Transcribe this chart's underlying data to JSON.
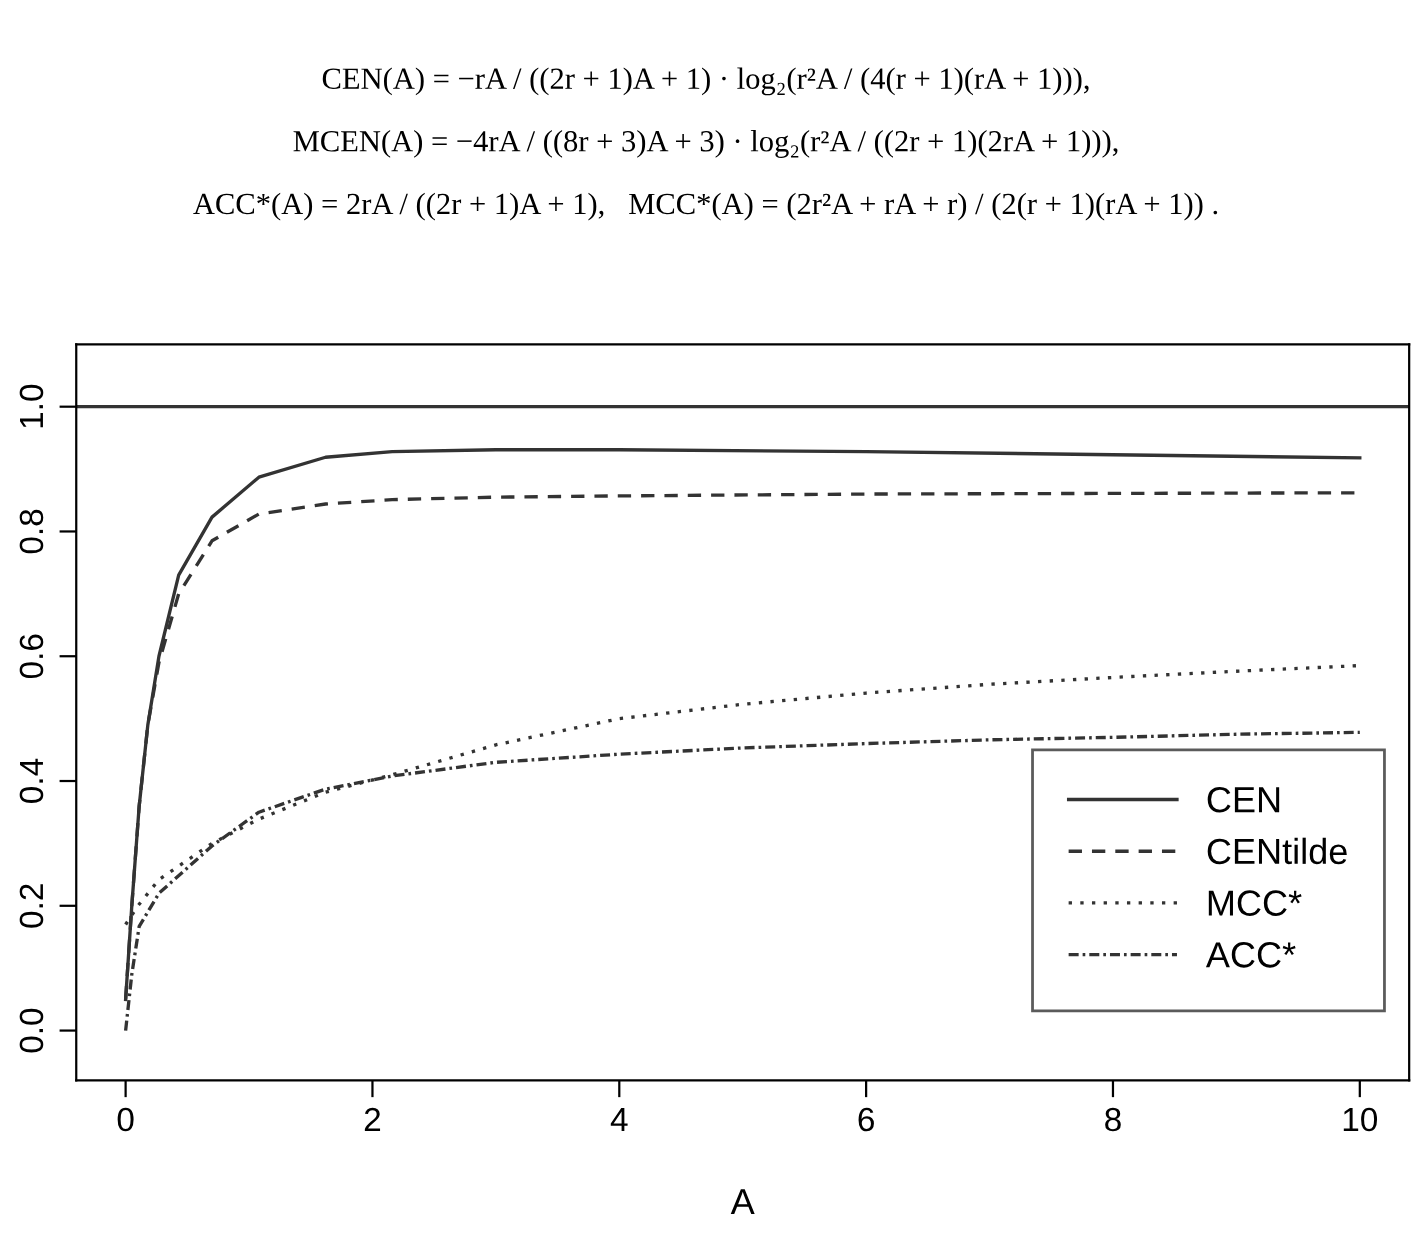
{
  "chart_data": {
    "type": "line",
    "xlabel": "A",
    "annotations": [
      "CEN(A) = −rA / ((2r + 1)A + 1) · log₂(r²A / (4(r + 1)(rA + 1))),",
      "MCEN(A) = −4rA / ((8r + 3)A + 3) · log₂(r²A / ((2r + 1)(2rA + 1))),",
      "ACC*(A) = 2rA / ((2r + 1)A + 1),   MCC*(A) = (2r²A + rA + r) / (2(r + 1)(rA + 1)) ."
    ],
    "xlim": [
      -0.4,
      10.4
    ],
    "ylim": [
      -0.08,
      1.1
    ],
    "xticks": [
      0,
      2,
      4,
      6,
      8,
      10
    ],
    "yticks": [
      {
        "value": 0,
        "label": "0.0"
      },
      0.2,
      0.4,
      0.6,
      0.8,
      {
        "value": 1,
        "label": "1.0"
      }
    ],
    "grid": false,
    "legend": "bottom right",
    "marker": "none",
    "ref_lines": [
      {
        "axis": "y",
        "value": 1,
        "label": null,
        "color": "#333333",
        "line_style": "solid"
      }
    ],
    "series": [
      {
        "name": "CEN",
        "color": "#333333",
        "line_style": "solid",
        "x": [
          0,
          0.05,
          0.11,
          0.18,
          0.27,
          0.43,
          0.7,
          1.08,
          1.62,
          2.16,
          3,
          4,
          6,
          8,
          10
        ],
        "values": [
          0.05,
          0.2,
          0.36,
          0.49,
          0.6,
          0.73,
          0.823,
          0.887,
          0.919,
          0.928,
          0.931,
          0.931,
          0.928,
          0.923,
          0.918
        ]
      },
      {
        "name": "CENtilde",
        "color": "#333333",
        "line_style": "dashed",
        "x": [
          0,
          0.05,
          0.11,
          0.18,
          0.27,
          0.43,
          0.7,
          1.08,
          1.62,
          2.16,
          3,
          4,
          6,
          8,
          10
        ],
        "values": [
          0.05,
          0.2,
          0.36,
          0.49,
          0.59,
          0.7,
          0.785,
          0.828,
          0.844,
          0.851,
          0.855,
          0.857,
          0.86,
          0.861,
          0.862
        ]
      },
      {
        "name": "MCC*",
        "color": "#333333",
        "line_style": "dotted",
        "x": [
          0,
          0.1,
          0.27,
          0.7,
          1.08,
          1.62,
          2.16,
          3,
          4,
          5,
          6,
          7,
          8,
          9,
          10
        ],
        "values": [
          0.17,
          0.2,
          0.242,
          0.3,
          0.339,
          0.382,
          0.41,
          0.458,
          0.5,
          0.523,
          0.541,
          0.555,
          0.566,
          0.576,
          0.585
        ]
      },
      {
        "name": "ACC*",
        "color": "#333333",
        "line_style": "dashdot",
        "x": [
          0,
          0.05,
          0.11,
          0.27,
          0.7,
          1.08,
          1.62,
          2.16,
          3,
          4,
          5,
          6,
          7,
          8,
          9,
          10
        ],
        "values": [
          0,
          0.09,
          0.167,
          0.22,
          0.296,
          0.35,
          0.387,
          0.408,
          0.43,
          0.443,
          0.453,
          0.46,
          0.466,
          0.47,
          0.475,
          0.478
        ]
      }
    ]
  }
}
